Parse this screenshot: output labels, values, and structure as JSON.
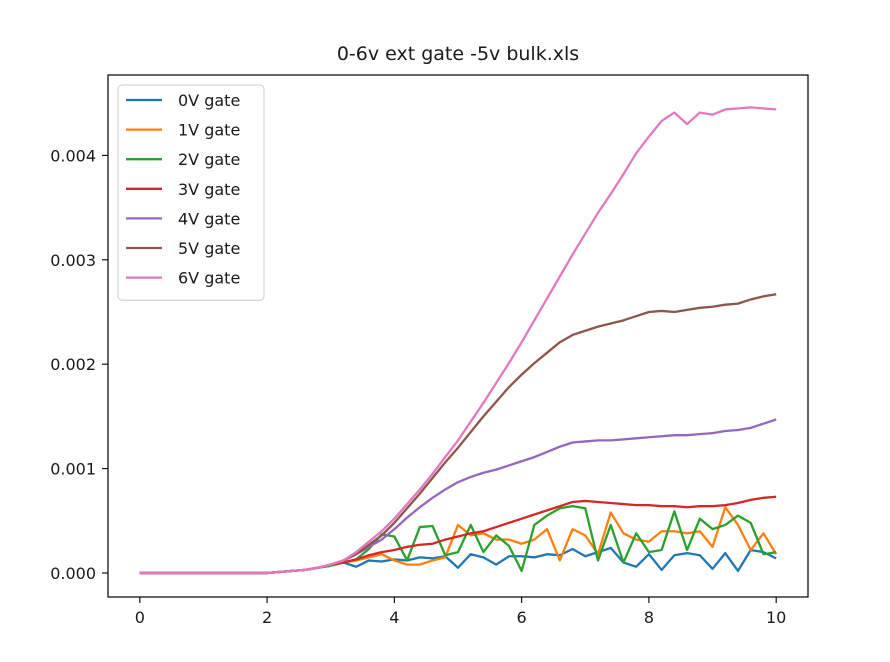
{
  "chart_data": {
    "type": "line",
    "title": "0-6v ext gate -5v bulk.xls",
    "xlabel": "",
    "ylabel": "",
    "xlim": [
      -0.5,
      10.5
    ],
    "ylim": [
      -0.00023,
      0.00477
    ],
    "xticks": [
      0,
      2,
      4,
      6,
      8,
      10
    ],
    "xtick_labels": [
      "0",
      "2",
      "4",
      "6",
      "8",
      "10"
    ],
    "yticks": [
      0.0,
      0.001,
      0.002,
      0.003,
      0.004
    ],
    "ytick_labels": [
      "0.000",
      "0.001",
      "0.002",
      "0.003",
      "0.004"
    ],
    "grid": false,
    "legend_position": "upper left",
    "x": [
      0,
      0.2,
      0.4,
      0.6,
      0.8,
      1.0,
      1.2,
      1.4,
      1.6,
      1.8,
      2.0,
      2.2,
      2.4,
      2.6,
      2.8,
      3.0,
      3.2,
      3.4,
      3.6,
      3.8,
      4.0,
      4.2,
      4.4,
      4.6,
      4.8,
      5.0,
      5.2,
      5.4,
      5.6,
      5.8,
      6.0,
      6.2,
      6.4,
      6.6,
      6.8,
      7.0,
      7.2,
      7.4,
      7.6,
      7.8,
      8.0,
      8.2,
      8.4,
      8.6,
      8.8,
      9.0,
      9.2,
      9.4,
      9.6,
      9.8,
      10.0
    ],
    "series": [
      {
        "name": "0V gate",
        "color": "#1f77b4",
        "values": [
          0.0,
          0.0,
          0.0,
          0.0,
          0.0,
          0.0,
          0.0,
          0.0,
          0.0,
          0.0,
          0.0,
          1e-05,
          2e-05,
          3e-05,
          5e-05,
          7e-05,
          0.0001,
          6e-05,
          0.00012,
          0.00011,
          0.00013,
          0.00012,
          0.00015,
          0.00014,
          0.00016,
          5e-05,
          0.00018,
          0.00015,
          8e-05,
          0.00016,
          0.00016,
          0.00015,
          0.00018,
          0.00017,
          0.00023,
          0.00016,
          0.0002,
          0.00024,
          0.0001,
          6e-05,
          0.00018,
          3e-05,
          0.00017,
          0.00019,
          0.00017,
          4e-05,
          0.00019,
          2e-05,
          0.00022,
          0.0002,
          0.00014
        ]
      },
      {
        "name": "1V gate",
        "color": "#ff7f0e",
        "values": [
          0.0,
          0.0,
          0.0,
          0.0,
          0.0,
          0.0,
          0.0,
          0.0,
          0.0,
          0.0,
          0.0,
          1e-05,
          2e-05,
          3e-05,
          5e-05,
          7e-05,
          0.0001,
          0.00012,
          0.00015,
          0.00018,
          0.00012,
          8e-05,
          8e-05,
          0.00012,
          0.00015,
          0.00046,
          0.00036,
          0.00038,
          0.00032,
          0.00032,
          0.00028,
          0.00032,
          0.00042,
          0.00012,
          0.00042,
          0.00036,
          0.00018,
          0.00058,
          0.00038,
          0.00032,
          0.0003,
          0.0004,
          0.0004,
          0.00038,
          0.0004,
          0.00025,
          0.00063,
          0.00046,
          0.00022,
          0.00038,
          0.00018
        ]
      },
      {
        "name": "2V gate",
        "color": "#2ca02c",
        "values": [
          0.0,
          0.0,
          0.0,
          0.0,
          0.0,
          0.0,
          0.0,
          0.0,
          0.0,
          0.0,
          0.0,
          1e-05,
          2e-05,
          3e-05,
          5e-05,
          7e-05,
          0.0001,
          0.00013,
          0.00023,
          0.00037,
          0.00035,
          0.00012,
          0.00044,
          0.00045,
          0.00017,
          0.0002,
          0.00046,
          0.0002,
          0.00036,
          0.00026,
          2e-05,
          0.00046,
          0.00055,
          0.00062,
          0.00064,
          0.00062,
          0.00012,
          0.00046,
          0.0001,
          0.00038,
          0.0002,
          0.00022,
          0.00059,
          0.00022,
          0.00052,
          0.00042,
          0.00046,
          0.00055,
          0.00048,
          0.00018,
          0.0002
        ]
      },
      {
        "name": "3V gate",
        "color": "#d62728",
        "values": [
          0.0,
          0.0,
          0.0,
          0.0,
          0.0,
          0.0,
          0.0,
          0.0,
          0.0,
          0.0,
          0.0,
          1e-05,
          2e-05,
          3e-05,
          5e-05,
          8e-05,
          0.0001,
          0.00013,
          0.00017,
          0.0002,
          0.00022,
          0.00025,
          0.00027,
          0.00028,
          0.00032,
          0.00035,
          0.00038,
          0.0004,
          0.00044,
          0.00048,
          0.00052,
          0.00056,
          0.0006,
          0.00064,
          0.00068,
          0.00069,
          0.00068,
          0.00067,
          0.00066,
          0.00065,
          0.00065,
          0.00064,
          0.00064,
          0.00063,
          0.00064,
          0.00064,
          0.00065,
          0.00067,
          0.0007,
          0.00072,
          0.00073
        ]
      },
      {
        "name": "4V gate",
        "color": "#9467bd",
        "values": [
          0.0,
          0.0,
          0.0,
          0.0,
          0.0,
          0.0,
          0.0,
          0.0,
          0.0,
          0.0,
          0.0,
          1e-05,
          2e-05,
          3e-05,
          5e-05,
          8e-05,
          0.00012,
          0.00018,
          0.00025,
          0.00032,
          0.00042,
          0.00053,
          0.00063,
          0.00072,
          0.0008,
          0.00087,
          0.00092,
          0.00096,
          0.00099,
          0.00103,
          0.00107,
          0.00111,
          0.00116,
          0.00121,
          0.00125,
          0.00126,
          0.00127,
          0.00127,
          0.00128,
          0.00129,
          0.0013,
          0.00131,
          0.00132,
          0.00132,
          0.00133,
          0.00134,
          0.00136,
          0.00137,
          0.00139,
          0.00143,
          0.00147
        ]
      },
      {
        "name": "5V gate",
        "color": "#8c564b",
        "values": [
          0.0,
          0.0,
          0.0,
          0.0,
          0.0,
          0.0,
          0.0,
          0.0,
          0.0,
          0.0,
          0.0,
          1e-05,
          2e-05,
          3e-05,
          5e-05,
          8e-05,
          0.00012,
          0.00018,
          0.00027,
          0.00036,
          0.00048,
          0.00062,
          0.00076,
          0.00091,
          0.00106,
          0.0012,
          0.00135,
          0.0015,
          0.00164,
          0.00178,
          0.0019,
          0.00201,
          0.00211,
          0.00221,
          0.00228,
          0.00232,
          0.00236,
          0.00239,
          0.00242,
          0.00246,
          0.0025,
          0.00251,
          0.0025,
          0.00252,
          0.00254,
          0.00255,
          0.00257,
          0.00258,
          0.00262,
          0.00265,
          0.00267
        ]
      },
      {
        "name": "6V gate",
        "color": "#e377c2",
        "values": [
          0.0,
          0.0,
          0.0,
          0.0,
          0.0,
          0.0,
          0.0,
          0.0,
          0.0,
          0.0,
          0.0,
          1e-05,
          2e-05,
          3e-05,
          5e-05,
          8e-05,
          0.00012,
          0.0002,
          0.0003,
          0.0004,
          0.00052,
          0.00066,
          0.0008,
          0.00095,
          0.00111,
          0.00127,
          0.00145,
          0.00163,
          0.00182,
          0.00201,
          0.00221,
          0.00242,
          0.00263,
          0.00284,
          0.00305,
          0.00325,
          0.00345,
          0.00363,
          0.00382,
          0.00402,
          0.00418,
          0.00433,
          0.00441,
          0.0043,
          0.00441,
          0.00439,
          0.00444,
          0.00445,
          0.00446,
          0.00445,
          0.00444
        ]
      }
    ]
  }
}
